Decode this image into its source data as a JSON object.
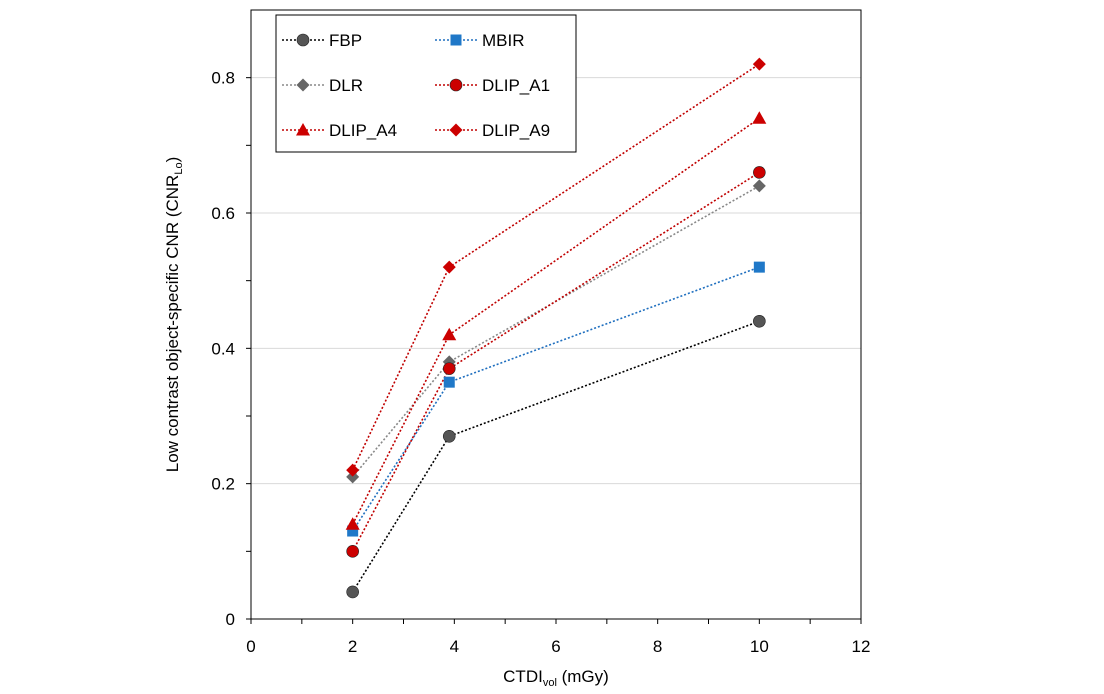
{
  "chart_data": {
    "type": "line",
    "xlabel": {
      "main": "CTDI",
      "sub": "vol",
      "suffix": " (mGy)"
    },
    "ylabel": {
      "main": "Low contrast object-specific CNR (CNR",
      "sub": "Lo",
      "suffix": ")"
    },
    "xlim": [
      0,
      12
    ],
    "ylim": [
      0,
      0.9
    ],
    "xticks": [
      0,
      2,
      4,
      6,
      8,
      10,
      12
    ],
    "xtick_labels": [
      "0",
      "2",
      "4",
      "6",
      "8",
      "10",
      "12"
    ],
    "yticks": [
      0,
      0.2,
      0.4,
      0.6,
      0.8
    ],
    "ytick_labels": [
      "0",
      "0.2",
      "0.4",
      "0.6",
      "0.8"
    ],
    "grid": {
      "horizontal": true,
      "vertical": false
    },
    "legend_placement": "top-left",
    "x": [
      2,
      3.9,
      10
    ],
    "series": [
      {
        "name": "FBP",
        "values": [
          0.04,
          0.27,
          0.44
        ],
        "color": "#000000",
        "marker_color": "#555555",
        "marker": "circle"
      },
      {
        "name": "MBIR",
        "values": [
          0.13,
          0.35,
          0.52
        ],
        "color": "#1f6fbf",
        "marker_color": "#1f78c8",
        "marker": "square"
      },
      {
        "name": "DLR",
        "values": [
          0.21,
          0.38,
          0.64
        ],
        "color": "#888888",
        "marker_color": "#666666",
        "marker": "diamond"
      },
      {
        "name": "DLIP_A1",
        "values": [
          0.1,
          0.37,
          0.66
        ],
        "color": "#c00000",
        "marker_color": "#cc0000",
        "marker": "circle"
      },
      {
        "name": "DLIP_A4",
        "values": [
          0.14,
          0.42,
          0.74
        ],
        "color": "#c00000",
        "marker_color": "#cc0000",
        "marker": "triangle"
      },
      {
        "name": "DLIP_A9",
        "values": [
          0.22,
          0.52,
          0.82
        ],
        "color": "#c00000",
        "marker_color": "#cc0000",
        "marker": "diamond"
      }
    ]
  }
}
